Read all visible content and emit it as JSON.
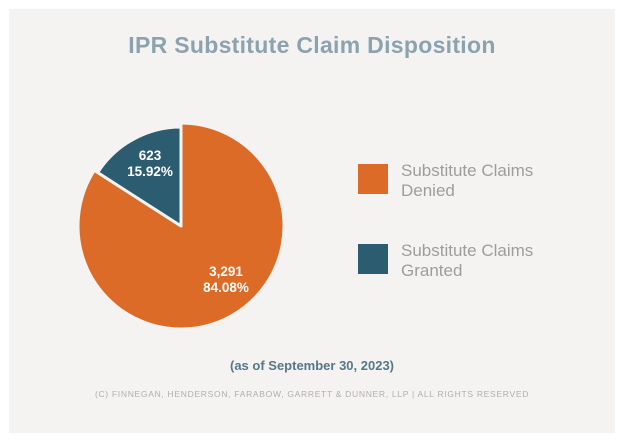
{
  "title": "IPR Substitute Claim Disposition",
  "chart_data": {
    "type": "pie",
    "title": "IPR Substitute Claim Disposition",
    "legend_position": "right",
    "start_angle_deg": 0,
    "slices": [
      {
        "label": "Substitute Claims Denied",
        "value": 3291,
        "percent": 84.08,
        "display_value": "3,291",
        "display_percent": "84.08%",
        "color": "#DC6B27"
      },
      {
        "label": "Substitute Claims Granted",
        "value": 623,
        "percent": 15.92,
        "display_value": "623",
        "display_percent": "15.92%",
        "color": "#2B5C6F"
      }
    ]
  },
  "legend": {
    "items": [
      {
        "line1": "Substitute Claims",
        "line2": "Denied"
      },
      {
        "line1": "Substitute Claims",
        "line2": "Granted"
      }
    ]
  },
  "footnote": "(as of September 30, 2023)",
  "copyright": "(C) FINNEGAN, HENDERSON, FARABOW, GARRETT & DUNNER, LLP | ALL RIGHTS RESERVED",
  "colors": {
    "denied": "#DC6B27",
    "granted": "#2B5C6F",
    "background": "#F4F3F1",
    "frame": "#FFFFFF",
    "title_text": "#8BA3AF",
    "legend_text": "#9D9D9D",
    "date_text": "#54788A",
    "copyright_text": "#B0AFAE"
  }
}
